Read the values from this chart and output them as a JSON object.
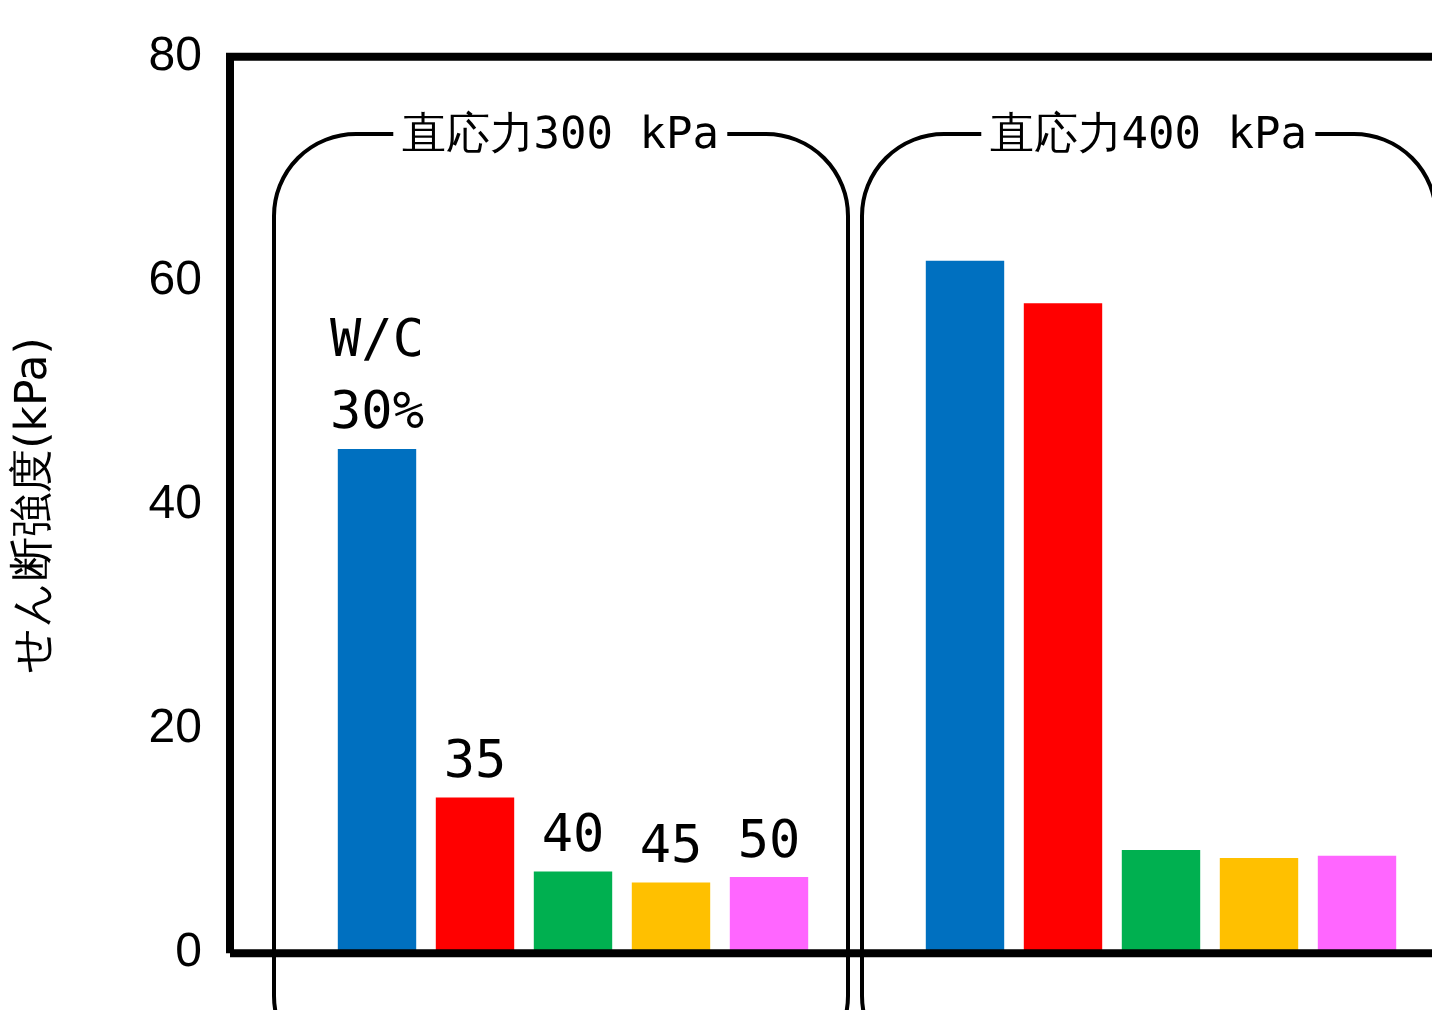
{
  "chart_data": {
    "type": "bar",
    "ylabel": "せん断強度(kPa)",
    "categories": [
      null,
      null,
      null,
      null,
      null,
      null,
      null,
      null,
      null,
      null,
      null,
      null,
      null
    ],
    "values": [
      null,
      45,
      13.9,
      7.3,
      6.3,
      6.8,
      null,
      61.8,
      58.0,
      9.2,
      8.5,
      8.7,
      null
    ],
    "colors": [
      "#0070c0",
      "#0070c0",
      "#ff0000",
      "#00b050",
      "#ffc000",
      "#ff66ff",
      "#0070c0",
      "#0070c0",
      "#ff0000",
      "#00b050",
      "#ffc000",
      "#ff66ff",
      "#0070c0"
    ],
    "annotations": [
      "直応力300 kPa",
      "直応力400 kPa",
      {
        "text": "W/C\n30%",
        "y": 45
      },
      {
        "text": "35",
        "y": 13.9
      },
      {
        "text": "40",
        "y": 7.3
      },
      {
        "text": "45",
        "y": 6.3
      },
      {
        "text": "50",
        "y": 6.8
      }
    ],
    "ylim": [
      0,
      80
    ],
    "yticks": [
      0,
      20,
      40,
      60,
      80
    ],
    "grid": false,
    "legend": false
  }
}
